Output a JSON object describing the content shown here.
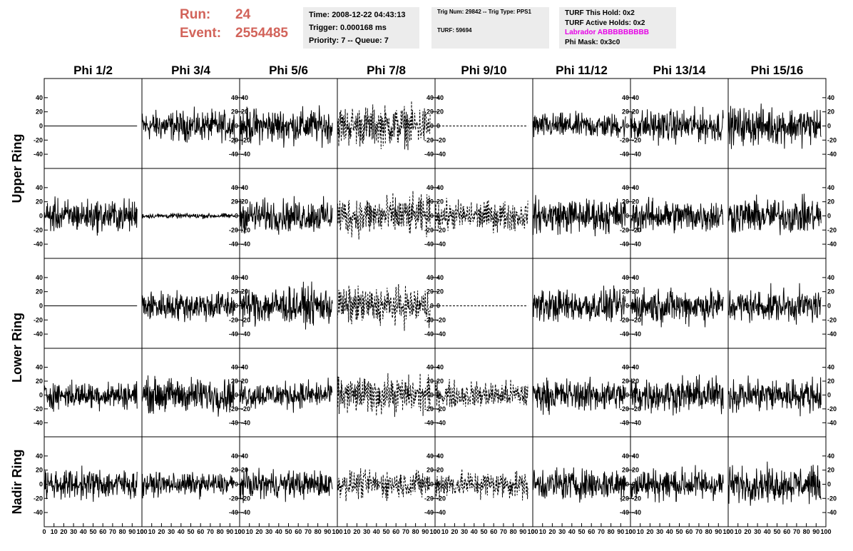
{
  "header": {
    "run_label": "Run:",
    "run_value": "24",
    "event_label": "Event:",
    "event_value": "2554485",
    "time": "Time: 2008-12-22 04:43:13",
    "trigger": "Trigger: 0.000168 ms",
    "priority": "Priority: 7 -- Queue: 7",
    "trig_num": "Trig Num: 29842 -- Trig Type: PPS1",
    "turf": "TURF: 59694",
    "turf_this_hold": "TURF This Hold: 0x2",
    "turf_active_holds": "TURF Active Holds: 0x2",
    "labrador": "Labrador ABBBBBBBBB",
    "phi_mask": "Phi Mask: 0x3c0"
  },
  "colors": {
    "run_text": "#d2635a",
    "labrador_text": "#e600e6",
    "info_bg": "#ececec",
    "trace": "#000000"
  },
  "chart_data": {
    "type": "line",
    "columns": [
      "Phi 1/2",
      "Phi 3/4",
      "Phi 5/6",
      "Phi 7/8",
      "Phi 9/10",
      "Phi 11/12",
      "Phi 13/14",
      "Phi 15/16"
    ],
    "row_labels": [
      {
        "text": "Upper Ring",
        "rows": [
          0,
          1
        ]
      },
      {
        "text": "Lower Ring",
        "rows": [
          2,
          3
        ]
      },
      {
        "text": "Nadir Ring",
        "rows": [
          4
        ]
      }
    ],
    "xlim": [
      0,
      100
    ],
    "ylim": [
      -50,
      55
    ],
    "y_ticks": [
      -40,
      -20,
      0,
      20,
      40
    ],
    "x_ticks": [
      0,
      10,
      20,
      30,
      40,
      50,
      60,
      70,
      80,
      90,
      100
    ],
    "x_tick_labels": [
      "0",
      "10",
      "20",
      "30",
      "40",
      "50",
      "60",
      "70",
      "80",
      "90",
      "100"
    ],
    "y_tick_labels": [
      "-40",
      "-20",
      "0",
      "20",
      "40"
    ],
    "n_samples": 260,
    "amplitude_matrix": [
      [
        0,
        12,
        14,
        16,
        0,
        10,
        13,
        15
      ],
      [
        13,
        2,
        13,
        16,
        12,
        14,
        13,
        14
      ],
      [
        0,
        12,
        15,
        15,
        0,
        13,
        14,
        13
      ],
      [
        11,
        14,
        11,
        15,
        11,
        13,
        14,
        14
      ],
      [
        12,
        9,
        11,
        11,
        11,
        13,
        13,
        14
      ]
    ],
    "dashed_columns": [
      3,
      4
    ]
  }
}
